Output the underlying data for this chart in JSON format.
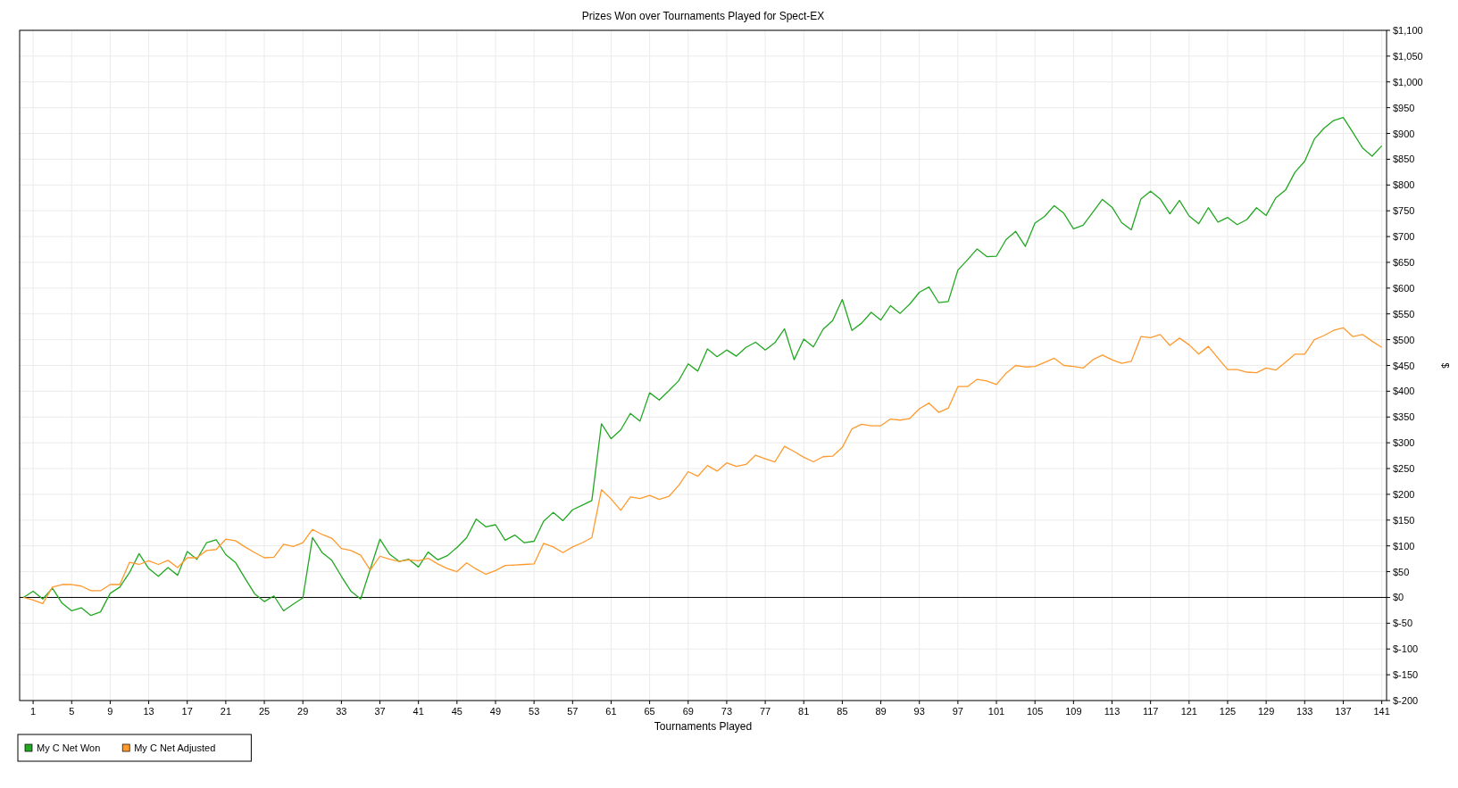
{
  "chart_data": {
    "type": "line",
    "title": "Prizes Won over Tournaments Played for Spect-EX",
    "xlabel": "Tournaments Played",
    "ylabel": "$",
    "x": [
      0,
      1,
      2,
      3,
      4,
      5,
      6,
      7,
      8,
      9,
      10,
      11,
      12,
      13,
      14,
      15,
      16,
      17,
      18,
      19,
      20,
      21,
      22,
      23,
      24,
      25,
      26,
      27,
      28,
      29,
      30,
      31,
      32,
      33,
      34,
      35,
      36,
      37,
      38,
      39,
      40,
      41,
      42,
      43,
      44,
      45,
      46,
      47,
      48,
      49,
      50,
      51,
      52,
      53,
      54,
      55,
      56,
      57,
      58,
      59,
      60,
      61,
      62,
      63,
      64,
      65,
      66,
      67,
      68,
      69,
      70,
      71,
      72,
      73,
      74,
      75,
      76,
      77,
      78,
      79,
      80,
      81,
      82,
      83,
      84,
      85,
      86,
      87,
      88,
      89,
      90,
      91,
      92,
      93,
      94,
      95,
      96,
      97,
      98,
      99,
      100,
      101,
      102,
      103,
      104,
      105,
      106,
      107,
      108,
      109,
      110,
      111,
      112,
      113,
      114,
      115,
      116,
      117,
      118,
      119,
      120,
      121,
      122,
      123,
      124,
      125,
      126,
      127,
      128,
      129,
      130,
      131,
      132,
      133,
      134,
      135,
      136,
      137,
      138,
      139,
      140,
      141
    ],
    "series": [
      {
        "name": "My C Net Won",
        "color": "#22a822",
        "values": [
          0,
          12,
          -3,
          18,
          -11,
          -26,
          -20,
          -35,
          -28,
          8,
          20,
          48,
          85,
          56,
          41,
          58,
          43,
          89,
          74,
          106,
          112,
          83,
          68,
          37,
          7,
          -8,
          3,
          -26,
          -13,
          -1,
          116,
          87,
          72,
          41,
          12,
          -3,
          55,
          113,
          84,
          70,
          74,
          59,
          88,
          73,
          81,
          97,
          116,
          152,
          137,
          141,
          111,
          121,
          106,
          109,
          148,
          165,
          149,
          170,
          179,
          188,
          337,
          308,
          325,
          357,
          342,
          397,
          383,
          401,
          420,
          453,
          439,
          482,
          467,
          480,
          468,
          485,
          495,
          480,
          494,
          521,
          461,
          501,
          486,
          520,
          537,
          578,
          518,
          532,
          553,
          538,
          566,
          551,
          569,
          592,
          602,
          572,
          574,
          635,
          655,
          676,
          661,
          662,
          694,
          710,
          681,
          726,
          739,
          760,
          745,
          715,
          722,
          747,
          772,
          757,
          727,
          713,
          773,
          788,
          773,
          744,
          770,
          740,
          725,
          756,
          728,
          737,
          723,
          733,
          756,
          741,
          775,
          790,
          825,
          846,
          889,
          910,
          925,
          931,
          902,
          872,
          856,
          876
        ]
      },
      {
        "name": "My C Net Adjusted",
        "color": "#ff9a2e",
        "values": [
          0,
          -5,
          -12,
          20,
          25,
          25,
          22,
          13,
          13,
          25,
          25,
          68,
          64,
          71,
          64,
          72,
          58,
          77,
          77,
          91,
          93,
          113,
          110,
          98,
          87,
          77,
          78,
          103,
          99,
          106,
          132,
          122,
          115,
          95,
          91,
          82,
          53,
          80,
          74,
          70,
          73,
          71,
          76,
          65,
          56,
          50,
          67,
          55,
          45,
          52,
          62,
          63,
          64,
          65,
          105,
          98,
          87,
          98,
          106,
          116,
          209,
          191,
          169,
          195,
          192,
          198,
          190,
          196,
          217,
          244,
          235,
          256,
          245,
          261,
          254,
          258,
          276,
          269,
          263,
          293,
          283,
          272,
          263,
          273,
          274,
          291,
          327,
          336,
          333,
          333,
          346,
          344,
          347,
          366,
          377,
          359,
          367,
          409,
          409,
          423,
          420,
          413,
          435,
          450,
          447,
          448,
          456,
          464,
          450,
          448,
          445,
          461,
          470,
          461,
          454,
          458,
          506,
          504,
          510,
          489,
          503,
          490,
          472,
          487,
          464,
          442,
          442,
          437,
          436,
          445,
          441,
          456,
          472,
          472,
          500,
          508,
          518,
          523,
          506,
          510,
          497,
          485
        ]
      }
    ],
    "xlim": [
      -0.4,
      141.5
    ],
    "xticks": [
      1,
      5,
      9,
      13,
      17,
      21,
      25,
      29,
      33,
      37,
      41,
      45,
      49,
      53,
      57,
      61,
      65,
      69,
      73,
      77,
      81,
      85,
      89,
      93,
      97,
      101,
      105,
      109,
      113,
      117,
      121,
      125,
      129,
      133,
      137,
      141
    ],
    "ylim": [
      -200,
      1100
    ],
    "yticks": [
      {
        "value": -200,
        "label": "$-200"
      },
      {
        "value": -150,
        "label": "$-150"
      },
      {
        "value": -100,
        "label": "$-100"
      },
      {
        "value": -50,
        "label": "$-50"
      },
      {
        "value": 0,
        "label": "$0"
      },
      {
        "value": 50,
        "label": "$50"
      },
      {
        "value": 100,
        "label": "$100"
      },
      {
        "value": 150,
        "label": "$150"
      },
      {
        "value": 200,
        "label": "$200"
      },
      {
        "value": 250,
        "label": "$250"
      },
      {
        "value": 300,
        "label": "$300"
      },
      {
        "value": 350,
        "label": "$350"
      },
      {
        "value": 400,
        "label": "$400"
      },
      {
        "value": 450,
        "label": "$450"
      },
      {
        "value": 500,
        "label": "$500"
      },
      {
        "value": 550,
        "label": "$550"
      },
      {
        "value": 600,
        "label": "$600"
      },
      {
        "value": 650,
        "label": "$650"
      },
      {
        "value": 700,
        "label": "$700"
      },
      {
        "value": 750,
        "label": "$750"
      },
      {
        "value": 800,
        "label": "$800"
      },
      {
        "value": 850,
        "label": "$850"
      },
      {
        "value": 900,
        "label": "$900"
      },
      {
        "value": 950,
        "label": "$950"
      },
      {
        "value": 1000,
        "label": "$1,000"
      },
      {
        "value": 1050,
        "label": "$1,050"
      },
      {
        "value": 1100,
        "label": "$1,100"
      }
    ],
    "ref_lines": [
      {
        "axis": "y",
        "value": 0,
        "color": "#000000"
      }
    ],
    "grid": true,
    "legend": "bottom left",
    "marker": "none",
    "line_style": "solid"
  }
}
